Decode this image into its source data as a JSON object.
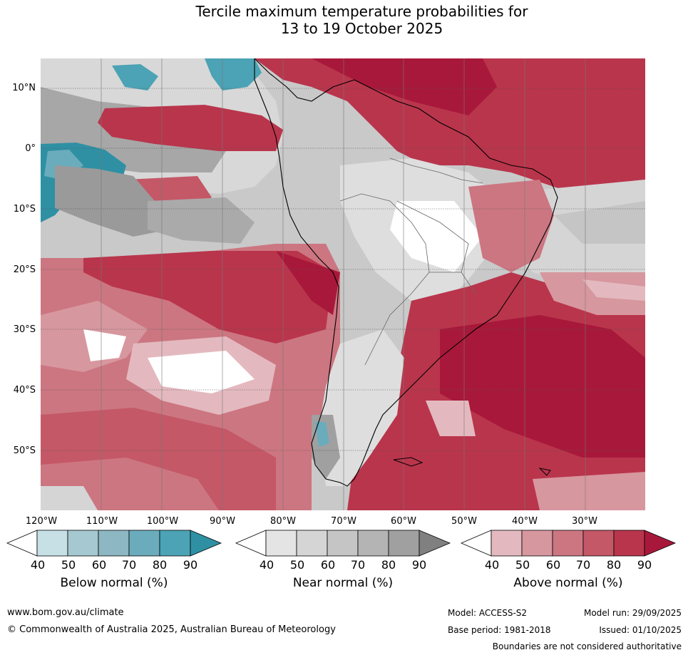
{
  "title": {
    "line1": "Tercile maximum temperature probabilities for",
    "line2": "13 to 19 October 2025"
  },
  "lat_labels": [
    "10°N",
    "0°",
    "10°S",
    "20°S",
    "30°S",
    "40°S",
    "50°S"
  ],
  "lon_labels": [
    "120°W",
    "110°W",
    "100°W",
    "90°W",
    "80°W",
    "70°W",
    "60°W",
    "50°W",
    "40°W",
    "30°W"
  ],
  "colorbars": [
    {
      "title": "Below normal (%)",
      "ticks": [
        "40",
        "50",
        "60",
        "70",
        "80",
        "90"
      ],
      "colors": [
        "#ffffff",
        "#c6e0e6",
        "#a6c8d0",
        "#8cb7c3",
        "#6bacbc",
        "#4ba3b5",
        "#2f90a4"
      ]
    },
    {
      "title": "Near normal (%)",
      "ticks": [
        "40",
        "50",
        "60",
        "70",
        "80",
        "90"
      ],
      "colors": [
        "#ffffff",
        "#e4e4e4",
        "#d5d5d5",
        "#c5c5c5",
        "#b4b4b4",
        "#a0a0a0",
        "#808080"
      ]
    },
    {
      "title": "Above normal (%)",
      "ticks": [
        "40",
        "50",
        "60",
        "70",
        "80",
        "90"
      ],
      "colors": [
        "#ffffff",
        "#e3b9bf",
        "#d7979f",
        "#cc7681",
        "#c45867",
        "#b9354c",
        "#a8183a"
      ]
    }
  ],
  "footer": {
    "website": "www.bom.gov.au/climate",
    "copyright": "© Commonwealth of Australia 2025, Australian Bureau of Meteorology",
    "model": "Model: ACCESS-S2",
    "base_period": "Base period: 1981-2018",
    "model_run": "Model run: 29/09/2025",
    "issued": "Issued: 01/10/2025",
    "boundaries": "Boundaries are not considered authoritative"
  }
}
